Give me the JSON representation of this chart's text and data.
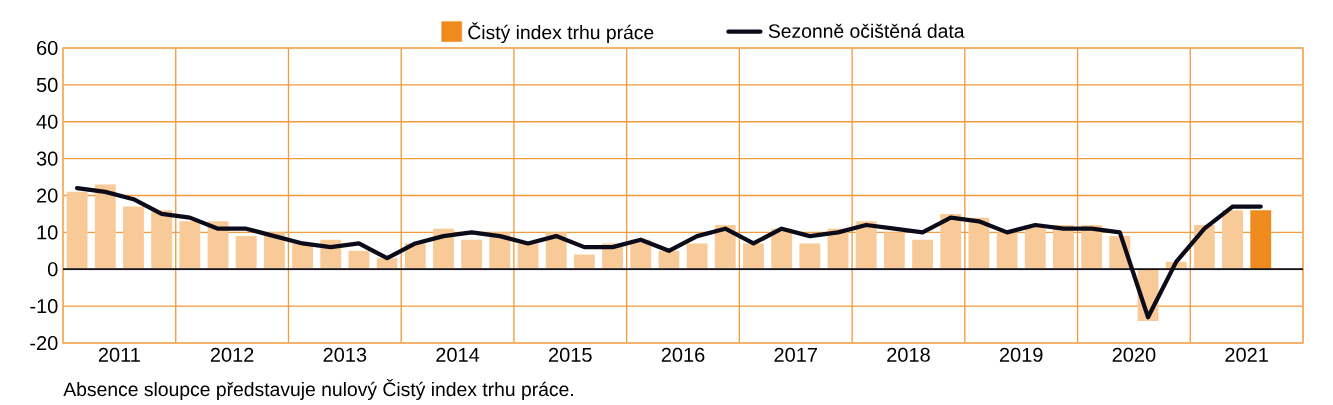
{
  "chart_data": {
    "type": "bar",
    "x": [
      2011.125,
      2011.375,
      2011.625,
      2011.875,
      2012.125,
      2012.375,
      2012.625,
      2012.875,
      2013.125,
      2013.375,
      2013.625,
      2013.875,
      2014.125,
      2014.375,
      2014.625,
      2014.875,
      2015.125,
      2015.375,
      2015.625,
      2015.875,
      2016.125,
      2016.375,
      2016.625,
      2016.875,
      2017.125,
      2017.375,
      2017.625,
      2017.875,
      2018.125,
      2018.375,
      2018.625,
      2018.875,
      2019.125,
      2019.375,
      2019.625,
      2019.875,
      2020.125,
      2020.375,
      2020.625,
      2020.875,
      2021.125,
      2021.375,
      2021.625
    ],
    "series": [
      {
        "color": "#f8ca98",
        "values": [
          21,
          23,
          17,
          16,
          13,
          13,
          9,
          10,
          7,
          8,
          5,
          3,
          7,
          11,
          8,
          10,
          7,
          10,
          4,
          7,
          8,
          5,
          7,
          12,
          7,
          11,
          7,
          11,
          13,
          10,
          8,
          15,
          14,
          10,
          12,
          12,
          12,
          9,
          -14,
          2,
          12,
          16,
          null
        ]
      },
      {
        "name": "Čistý index trhu práce",
        "color": "#ee8a1e",
        "values": [
          null,
          null,
          null,
          null,
          null,
          null,
          null,
          null,
          null,
          null,
          null,
          null,
          null,
          null,
          null,
          null,
          null,
          null,
          null,
          null,
          null,
          null,
          null,
          null,
          null,
          null,
          null,
          null,
          null,
          null,
          null,
          null,
          null,
          null,
          null,
          null,
          null,
          null,
          null,
          null,
          null,
          null,
          16
        ]
      },
      {
        "name": "Sezonně očištěná data",
        "type": "line",
        "color": "#0b0b1a",
        "values": [
          22,
          21,
          19,
          15,
          14,
          11,
          11,
          9,
          7,
          6,
          7,
          3,
          7,
          9,
          10,
          9,
          7,
          9,
          6,
          6,
          8,
          5,
          9,
          11,
          7,
          11,
          9,
          10,
          12,
          11,
          10,
          14,
          13,
          10,
          12,
          11,
          11,
          10,
          -13,
          2,
          11,
          17,
          17
        ]
      }
    ],
    "xlim": [
      2011,
      2022
    ],
    "xticks": [
      {
        "value": 2011,
        "label": null
      },
      {
        "value": 2011.5,
        "label": "2011"
      },
      {
        "value": 2012,
        "label": null
      },
      {
        "value": 2012.5,
        "label": "2012"
      },
      {
        "value": 2013,
        "label": null
      },
      {
        "value": 2013.5,
        "label": "2013"
      },
      {
        "value": 2014,
        "label": null
      },
      {
        "value": 2014.5,
        "label": "2014"
      },
      {
        "value": 2015,
        "label": null
      },
      {
        "value": 2015.5,
        "label": "2015"
      },
      {
        "value": 2016,
        "label": null
      },
      {
        "value": 2016.5,
        "label": "2016"
      },
      {
        "value": 2017,
        "label": null
      },
      {
        "value": 2017.5,
        "label": "2017"
      },
      {
        "value": 2018,
        "label": null
      },
      {
        "value": 2018.5,
        "label": "2018"
      },
      {
        "value": 2019,
        "label": null
      },
      {
        "value": 2019.5,
        "label": "2019"
      },
      {
        "value": 2020,
        "label": null
      },
      {
        "value": 2020.5,
        "label": "2020"
      },
      {
        "value": 2021,
        "label": null
      },
      {
        "value": 2021.5,
        "label": "2021"
      },
      {
        "value": 2022,
        "label": null
      }
    ],
    "ylim": [
      -20,
      60
    ],
    "yticks": [
      -20,
      -10,
      0,
      10,
      20,
      30,
      40,
      50,
      60
    ],
    "grid": true,
    "legend": "top",
    "ref_lines": [
      {
        "axis": "y",
        "value": 0,
        "color": "#111122"
      }
    ],
    "annotations": [
      "Absence sloupce představuje nulový Čistý index trhu práce."
    ]
  }
}
